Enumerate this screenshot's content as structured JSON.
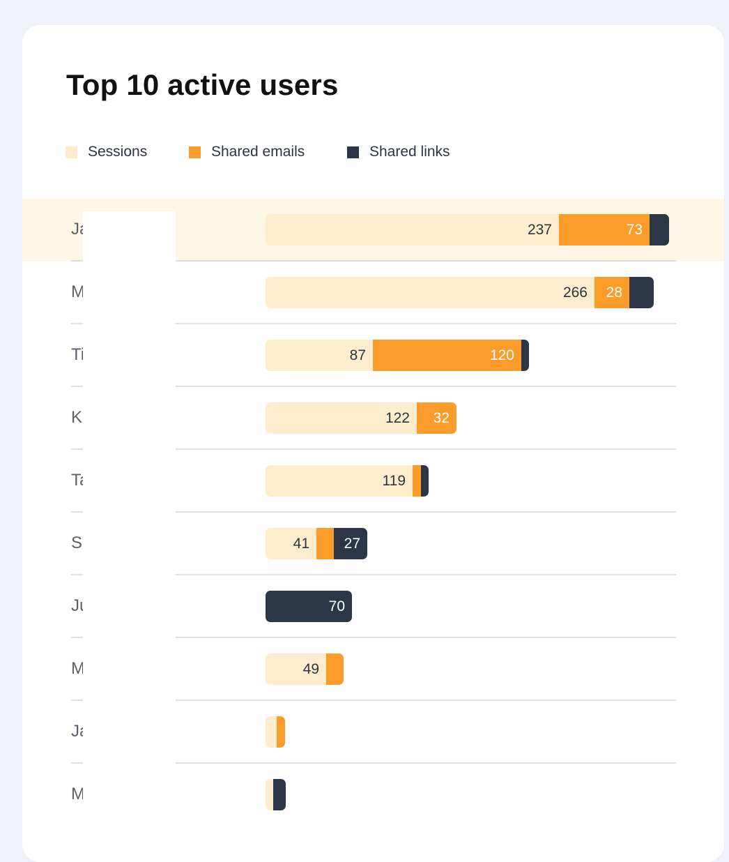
{
  "chart_data": {
    "type": "bar",
    "orientation": "horizontal",
    "stacked": true,
    "title": "Top 10 active users",
    "legend_position": "top-left",
    "series": [
      {
        "name": "Sessions",
        "color": "#fdedcc"
      },
      {
        "name": "Shared emails",
        "color": "#fb9b2a"
      },
      {
        "name": "Shared links",
        "color": "#2d3647"
      }
    ],
    "max_total": 355,
    "rows": [
      {
        "name": "Ja            lm",
        "sessions": 237,
        "emails": 73,
        "links": 16,
        "labels": [
          "237",
          "73",
          ""
        ],
        "highlighted": true
      },
      {
        "name": "M            /",
        "sessions": 266,
        "emails": 28,
        "links": 20,
        "labels": [
          "266",
          "28",
          ""
        ],
        "highlighted": false
      },
      {
        "name": "Ti            a...",
        "sessions": 87,
        "emails": 120,
        "links": 6,
        "labels": [
          "87",
          "120",
          ""
        ],
        "highlighted": false
      },
      {
        "name": "K            en",
        "sessions": 122,
        "emails": 32,
        "links": 0,
        "labels": [
          "122",
          "32",
          ""
        ],
        "highlighted": false
      },
      {
        "name": "Ta            v...",
        "sessions": 119,
        "emails": 7,
        "links": 6,
        "labels": [
          "119",
          "",
          ""
        ],
        "highlighted": false
      },
      {
        "name": "S            P...",
        "sessions": 41,
        "emails": 14,
        "links": 27,
        "labels": [
          "41",
          "",
          "27"
        ],
        "highlighted": false
      },
      {
        "name": "Ju",
        "sessions": 0,
        "emails": 0,
        "links": 70,
        "labels": [
          "",
          "",
          "70"
        ],
        "highlighted": false
      },
      {
        "name": "M            ns...",
        "sessions": 49,
        "emails": 14,
        "links": 0,
        "labels": [
          "49",
          "",
          ""
        ],
        "highlighted": false
      },
      {
        "name": "Ja",
        "sessions": 9,
        "emails": 7,
        "links": 0,
        "labels": [
          "",
          "",
          ""
        ],
        "highlighted": false
      },
      {
        "name": "M            ro",
        "sessions": 6,
        "emails": 0,
        "links": 10,
        "labels": [
          "",
          "",
          ""
        ],
        "highlighted": false
      }
    ]
  }
}
